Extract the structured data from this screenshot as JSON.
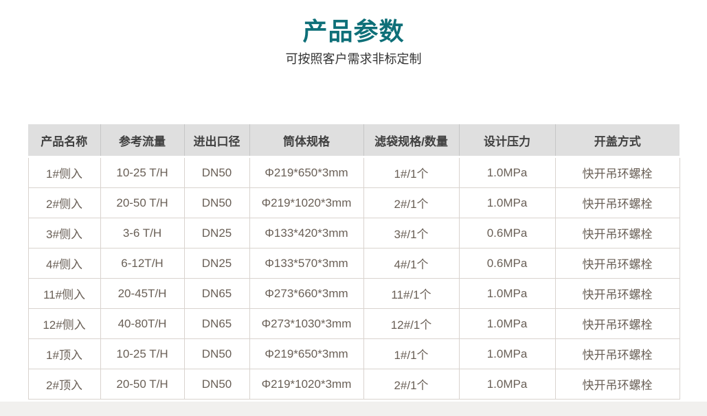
{
  "section": {
    "title": "产品参数",
    "subtitle": "可按照客户需求非标定制"
  },
  "table": {
    "headers": [
      "产品名称",
      "参考流量",
      "进出口径",
      "筒体规格",
      "滤袋规格/数量",
      "设计压力",
      "开盖方式"
    ],
    "rows": [
      [
        "1#侧入",
        "10-25 T/H",
        "DN50",
        "Φ219*650*3mm",
        "1#/1个",
        "1.0MPa",
        "快开吊环螺栓"
      ],
      [
        "2#侧入",
        "20-50 T/H",
        "DN50",
        "Φ219*1020*3mm",
        "2#/1个",
        "1.0MPa",
        "快开吊环螺栓"
      ],
      [
        "3#侧入",
        "3-6 T/H",
        "DN25",
        "Φ133*420*3mm",
        "3#/1个",
        "0.6MPa",
        "快开吊环螺栓"
      ],
      [
        "4#侧入",
        "6-12T/H",
        "DN25",
        "Φ133*570*3mm",
        "4#/1个",
        "0.6MPa",
        "快开吊环螺栓"
      ],
      [
        "11#侧入",
        "20-45T/H",
        "DN65",
        "Φ273*660*3mm",
        "11#/1个",
        "1.0MPa",
        "快开吊环螺栓"
      ],
      [
        "12#侧入",
        "40-80T/H",
        "DN65",
        "Φ273*1030*3mm",
        "12#/1个",
        "1.0MPa",
        "快开吊环螺栓"
      ],
      [
        "1#顶入",
        "10-25 T/H",
        "DN50",
        "Φ219*650*3mm",
        "1#/1个",
        "1.0MPa",
        "快开吊环螺栓"
      ],
      [
        "2#顶入",
        "20-50 T/H",
        "DN50",
        "Φ219*1020*3mm",
        "2#/1个",
        "1.0MPa",
        "快开吊环螺栓"
      ]
    ]
  },
  "colors": {
    "title_accent": "#0e6f78",
    "subtitle_text": "#333333",
    "header_background": "#dfdfdf",
    "header_text": "#404040",
    "body_text": "#695f56",
    "table_border": "#d9d3ce",
    "footer_strip": "#f1f0ee"
  }
}
